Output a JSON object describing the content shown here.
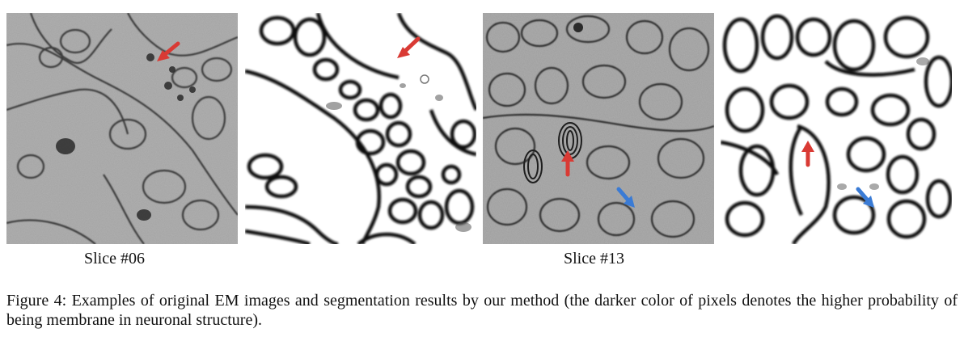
{
  "figure": {
    "panels": [
      {
        "kind": "em-image",
        "arrows": [
          {
            "color": "#d93a34",
            "direction": "down-left"
          }
        ]
      },
      {
        "kind": "segmentation",
        "arrows": [
          {
            "color": "#d93a34",
            "direction": "down-left"
          }
        ]
      },
      {
        "kind": "em-image",
        "arrows": [
          {
            "color": "#d93a34",
            "direction": "up"
          },
          {
            "color": "#3a7bd5",
            "direction": "down-right"
          }
        ]
      },
      {
        "kind": "segmentation",
        "arrows": [
          {
            "color": "#d93a34",
            "direction": "up"
          },
          {
            "color": "#3a7bd5",
            "direction": "down-right"
          }
        ]
      }
    ],
    "labels": {
      "slice_a": "Slice #06",
      "slice_b": "Slice #13"
    },
    "caption": "Figure 4: Examples of original EM images and segmentation results by our method (the darker color of pixels denotes the higher probability of being membrane in neuronal structure).",
    "colors": {
      "arrow_red": "#d93a34",
      "arrow_blue": "#3a7bd5",
      "membrane": "#0a0a0a",
      "em_background": "#9a9a9a"
    }
  }
}
